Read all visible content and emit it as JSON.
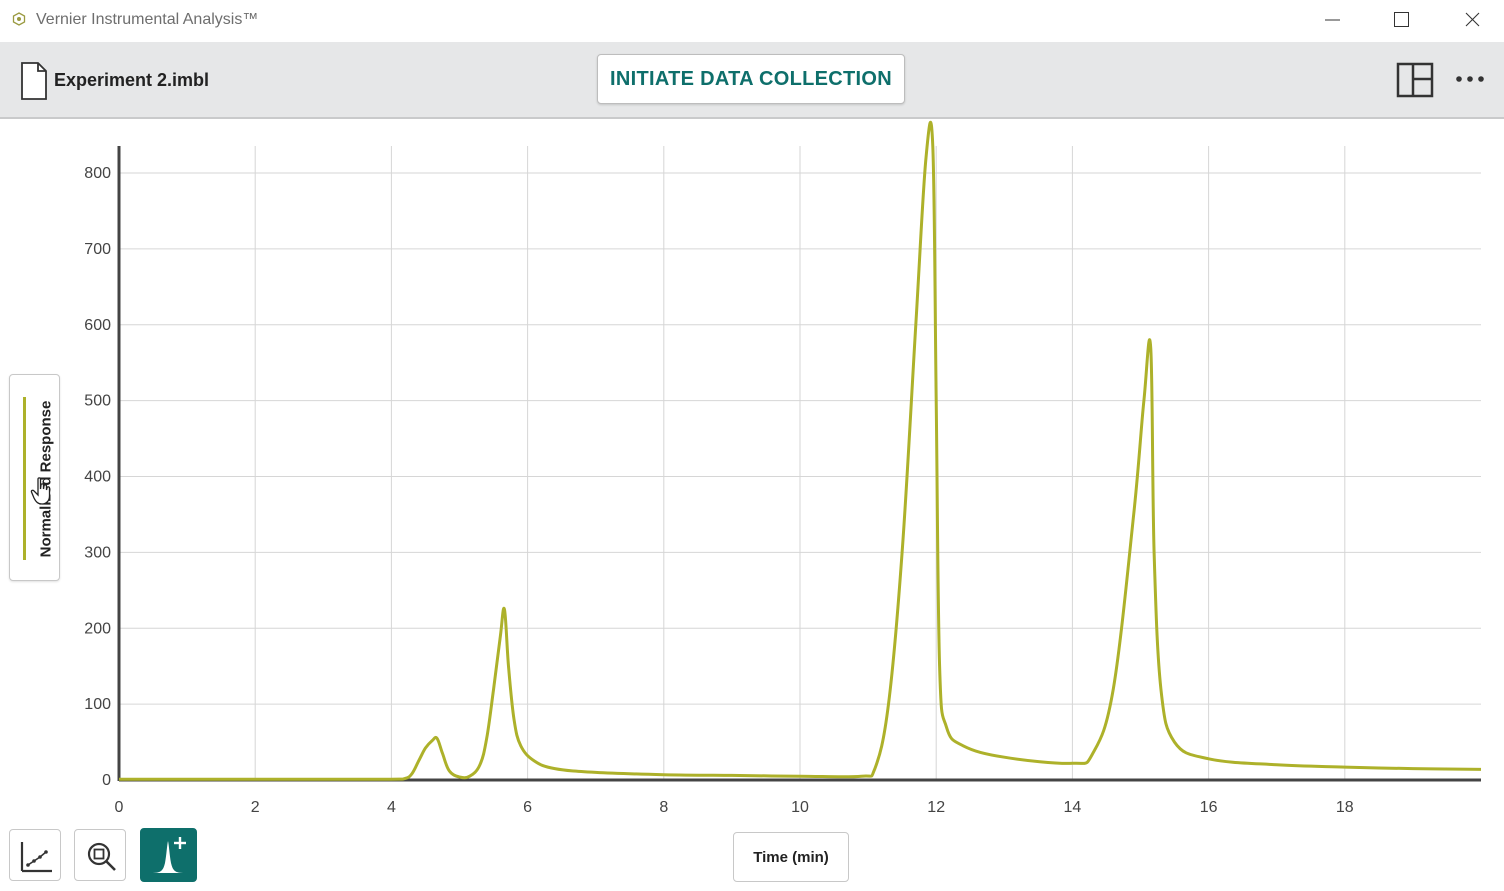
{
  "window": {
    "title": "Vernier Instrumental Analysis™"
  },
  "toolbar": {
    "file_name": "Experiment 2.imbl",
    "collect_label": "INITIATE DATA COLLECTION"
  },
  "colors": {
    "accent": "#0e6f6b",
    "series": "#adb12a",
    "toolbar_bg": "#e6e7e8"
  },
  "icons": {
    "app": "vernier-logo-icon",
    "file": "file-icon",
    "layout": "layout-panels-icon",
    "more": "more-dots-icon",
    "axes_tool": "axes-tool-icon",
    "zoom_tool": "zoom-icon",
    "peak_tool": "add-peak-icon"
  },
  "chart_data": {
    "type": "line",
    "title": "",
    "xlabel": "Time (min)",
    "ylabel": "Normalized Response",
    "xlim": [
      0,
      20
    ],
    "ylim": [
      0,
      835
    ],
    "x_ticks": [
      0,
      2,
      4,
      6,
      8,
      10,
      12,
      14,
      16,
      18
    ],
    "y_ticks": [
      0,
      100,
      200,
      300,
      400,
      500,
      600,
      700,
      800
    ],
    "grid": true,
    "legend": "none",
    "series": [
      {
        "name": "Normalized Response",
        "x": [
          0,
          1,
          2,
          3,
          4,
          4.2,
          4.3,
          4.4,
          4.5,
          4.6,
          4.67,
          4.75,
          4.85,
          5.0,
          5.15,
          5.3,
          5.4,
          5.5,
          5.6,
          5.66,
          5.72,
          5.8,
          5.9,
          6.1,
          6.4,
          7.0,
          8.0,
          9.0,
          10.0,
          10.9,
          11.1,
          11.3,
          11.5,
          11.7,
          11.85,
          11.95,
          12.0,
          12.05,
          12.15,
          12.4,
          13.0,
          14.0,
          14.3,
          14.6,
          14.9,
          15.05,
          15.15,
          15.2,
          15.3,
          15.5,
          16.0,
          17.0,
          18.0,
          19.0,
          20.0
        ],
        "y": [
          1,
          1,
          1,
          1,
          1,
          2,
          8,
          25,
          42,
          52,
          55,
          35,
          12,
          4,
          5,
          20,
          55,
          120,
          190,
          225,
          150,
          80,
          45,
          25,
          15,
          10,
          7,
          6,
          5,
          5,
          15,
          100,
          300,
          600,
          820,
          835,
          500,
          150,
          70,
          45,
          30,
          22,
          35,
          120,
          350,
          500,
          570,
          300,
          120,
          50,
          28,
          20,
          17,
          15,
          14
        ]
      }
    ]
  }
}
